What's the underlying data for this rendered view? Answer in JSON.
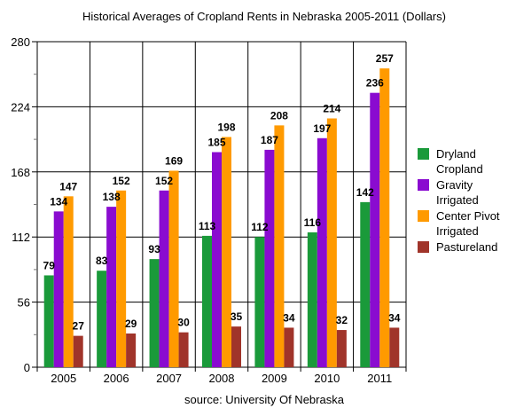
{
  "chart_data": {
    "type": "bar",
    "title": "Historical Averages of Cropland Rents in Nebraska 2005-2011 (Dollars)",
    "caption": "source: University Of Nebraska",
    "categories": [
      "2005",
      "2006",
      "2007",
      "2008",
      "2009",
      "2010",
      "2011"
    ],
    "ylim": [
      0,
      280
    ],
    "yticks": [
      0,
      56,
      112,
      168,
      224,
      280
    ],
    "grid": true,
    "legend_position": "right",
    "series": [
      {
        "name": "Dryland Cropland",
        "legend_lines": [
          "Dryland",
          "Cropland"
        ],
        "color": "#1a9a3a",
        "values": [
          79,
          83,
          93,
          113,
          112,
          116,
          142
        ]
      },
      {
        "name": "Gravity Irrigated",
        "legend_lines": [
          "Gravity",
          "Irrigated"
        ],
        "color": "#8a0bd0",
        "values": [
          134,
          138,
          152,
          185,
          187,
          197,
          236
        ]
      },
      {
        "name": "Center Pivot Irrigated",
        "legend_lines": [
          "Center Pivot",
          "Irrigated"
        ],
        "color": "#ff9a00",
        "values": [
          147,
          152,
          169,
          198,
          208,
          214,
          257
        ]
      },
      {
        "name": "Pastureland",
        "legend_lines": [
          "Pastureland"
        ],
        "color": "#a0342a",
        "values": [
          27,
          29,
          30,
          35,
          34,
          32,
          34
        ]
      }
    ]
  }
}
